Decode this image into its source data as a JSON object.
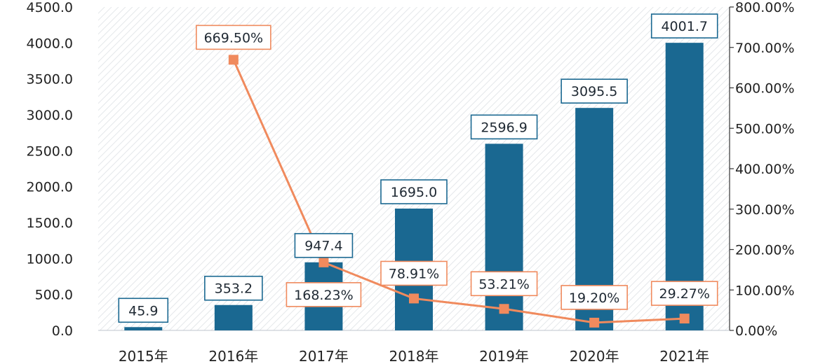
{
  "chart_data": {
    "type": "bar",
    "categories": [
      "2015年",
      "2016年",
      "2017年",
      "2018年",
      "2019年",
      "2020年",
      "2021年"
    ],
    "series": [
      {
        "type": "bar",
        "axis": "left",
        "values": [
          45.9,
          353.2,
          947.4,
          1695.0,
          2596.9,
          3095.5,
          4001.7
        ],
        "labels": [
          "45.9",
          "353.2",
          "947.4",
          "1695.0",
          "2596.9",
          "3095.5",
          "4001.7"
        ],
        "color": "#1a6891"
      },
      {
        "type": "line",
        "axis": "right",
        "x": [
          "2016年",
          "2017年",
          "2018年",
          "2019年",
          "2020年",
          "2021年"
        ],
        "values": [
          669.5,
          168.23,
          78.91,
          53.21,
          19.2,
          29.27
        ],
        "labels": [
          "669.50%",
          "168.23%",
          "78.91%",
          "53.21%",
          "19.20%",
          "29.27%"
        ],
        "color": "#f08a5d"
      }
    ],
    "ylim_left": [
      0,
      4500
    ],
    "ylim_right": [
      0,
      800
    ],
    "left_ticks": [
      "0.0",
      "500.0",
      "1000.0",
      "1500.0",
      "2000.0",
      "2500.0",
      "3000.0",
      "3500.0",
      "4000.0",
      "4500.0"
    ],
    "right_ticks": [
      "0.00%",
      "100.00%",
      "200.00%",
      "300.00%",
      "400.00%",
      "500.00%",
      "600.00%",
      "700.00%",
      "800.00%"
    ],
    "grid": false,
    "background": "diagonal-hatch",
    "legend": "none"
  }
}
